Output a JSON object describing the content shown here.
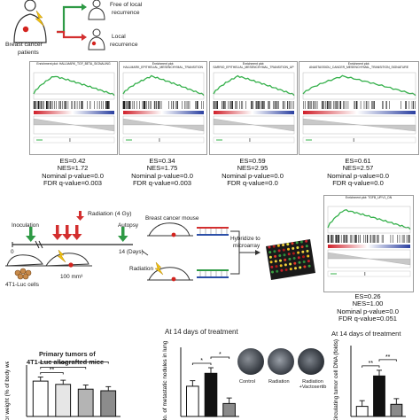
{
  "top_flow": {
    "patients_label_1": "Breast cancer",
    "patients_label_2": "patients",
    "free_label_1": "Free of local",
    "free_label_2": "recurrence",
    "local_label_1": "Local",
    "local_label_2": "recurrence"
  },
  "gsea_panels": [
    {
      "line1": "Enrichment plot: HALLMARK_TGF_BETA_SIGNALING",
      "line2": "",
      "es": "ES=0.42",
      "nes": "NES=1.72",
      "p": "Nominal p-value=0.0",
      "fdr": "FDR q-value=0.003"
    },
    {
      "line1": "Enrichment plot:",
      "line2": "HALLMARK_EPITHELIAL_MESENCHYMAL_TRANSITION",
      "es": "ES=0.34",
      "nes": "NES=1.75",
      "p": "Nominal p-value=0.0",
      "fdr": "FDR q-value=0.003"
    },
    {
      "line1": "Enrichment plot:",
      "line2": "SARRIO_EPITHELIAL_MESENCHYMAL_TRANSITION_UP",
      "es": "ES=0.59",
      "nes": "NES=2.95",
      "p": "Nominal p-value=0.0",
      "fdr": "FDR q-value=0.0"
    },
    {
      "line1": "Enrichment plot:",
      "line2": "ANASTASSIOU_CANCER_MESENCHYMAL_TRANSITION_SIGNATURE",
      "es": "ES=0.61",
      "nes": "NES=2.57",
      "p": "Nominal p-value=0.0",
      "fdr": "FDR q-value=0.0"
    },
    {
      "line1": "Enrichment plot: TGFB_UP.V1_DN",
      "line2": "",
      "es": "ES=0.26",
      "nes": "NES=1.00",
      "p": "Nominal p-value=0.0",
      "fdr": "FDR q-value=0.051"
    }
  ],
  "timeline": {
    "radiation_label": "Radiation (4 Gy)",
    "inoculation": "Inoculation",
    "autopsy": "Autopsy",
    "day_label": "14 (Days)",
    "day0": "0",
    "cells_label": "4T1-Luc cells",
    "volume_label": "100 mm³",
    "mouse_label": "Breast cancer mouse",
    "radiation_side": "Radiation",
    "hybridize_1": "Hybridize to",
    "hybridize_2": "microarray"
  },
  "microarray_colors": [
    "#c8202a",
    "#e23a2a",
    "#f0c020",
    "#2e8b3a",
    "#e8e040",
    "#b01818",
    "#3aa040",
    "#f4d040"
  ],
  "chart_titles": {
    "a_1": "Primary tumors of",
    "a_2": "4T1-Luc allografted mice",
    "b": "At 14 days of treatment",
    "c": "At 14 days of treatment"
  },
  "chart_data": [
    {
      "type": "bar",
      "title": "Primary tumors of 4T1-Luc allografted mice",
      "ylabel": "Tumor weight (% of body weight)",
      "values": [
        1.1,
        1.0,
        0.85,
        0.8
      ],
      "ylim": [
        0,
        1.6
      ],
      "colors": [
        "#ffffff",
        "#e6e6e6",
        "#b4b4b4",
        "#8c8c8c"
      ],
      "significance": [
        "**",
        "***",
        "**"
      ]
    },
    {
      "type": "bar",
      "title": "At 14 days of treatment",
      "ylabel": "No. of metastatic nodules in lung",
      "values": [
        7,
        10,
        3
      ],
      "ylim": [
        0,
        16
      ],
      "colors": [
        "#ffffff",
        "#111111",
        "#8a8a8a"
      ],
      "significance": [
        "*",
        "*"
      ],
      "legend": [
        "Control",
        "Radiation",
        "Radiation +Vactosertib"
      ]
    },
    {
      "type": "bar",
      "title": "At 14 days of treatment",
      "ylabel": "Circulating tumor cell DNA (folds)",
      "values": [
        1,
        4,
        1.2
      ],
      "ylim": [
        0,
        7
      ],
      "colors": [
        "#ffffff",
        "#111111",
        "#8a8a8a"
      ],
      "significance": [
        "**",
        "**"
      ]
    }
  ]
}
